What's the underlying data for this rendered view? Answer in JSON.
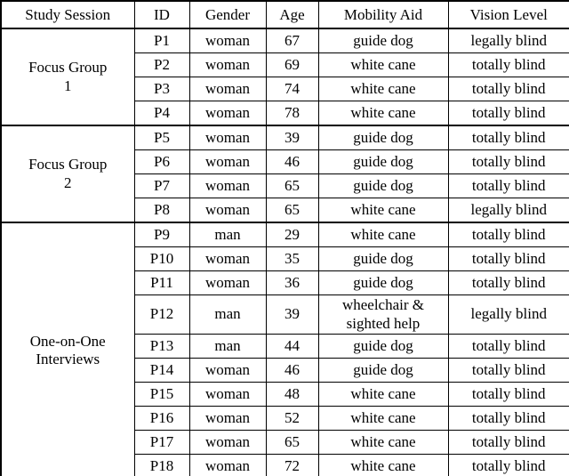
{
  "table": {
    "headers": [
      "Study Session",
      "ID",
      "Gender",
      "Age",
      "Mobility Aid",
      "Vision Level"
    ],
    "groups": [
      {
        "session": "Focus Group 1",
        "session_lines": [
          "Focus Group",
          "1"
        ],
        "rows": [
          {
            "id": "P1",
            "gender": "woman",
            "age": "67",
            "mobility_aid": "guide dog",
            "vision_level": "legally blind"
          },
          {
            "id": "P2",
            "gender": "woman",
            "age": "69",
            "mobility_aid": "white cane",
            "vision_level": "totally blind"
          },
          {
            "id": "P3",
            "gender": "woman",
            "age": "74",
            "mobility_aid": "white cane",
            "vision_level": "totally blind"
          },
          {
            "id": "P4",
            "gender": "woman",
            "age": "78",
            "mobility_aid": "white cane",
            "vision_level": "totally blind"
          }
        ]
      },
      {
        "session": "Focus Group 2",
        "session_lines": [
          "Focus Group",
          "2"
        ],
        "rows": [
          {
            "id": "P5",
            "gender": "woman",
            "age": "39",
            "mobility_aid": "guide dog",
            "vision_level": "totally blind"
          },
          {
            "id": "P6",
            "gender": "woman",
            "age": "46",
            "mobility_aid": "guide dog",
            "vision_level": "totally blind"
          },
          {
            "id": "P7",
            "gender": "woman",
            "age": "65",
            "mobility_aid": "guide dog",
            "vision_level": "totally blind"
          },
          {
            "id": "P8",
            "gender": "woman",
            "age": "65",
            "mobility_aid": "white cane",
            "vision_level": "legally blind"
          }
        ]
      },
      {
        "session": "One-on-One Interviews",
        "session_lines": [
          "One-on-One",
          "Interviews"
        ],
        "rows": [
          {
            "id": "P9",
            "gender": "man",
            "age": "29",
            "mobility_aid": "white cane",
            "vision_level": "totally blind"
          },
          {
            "id": "P10",
            "gender": "woman",
            "age": "35",
            "mobility_aid": "guide dog",
            "vision_level": "totally blind"
          },
          {
            "id": "P11",
            "gender": "woman",
            "age": "36",
            "mobility_aid": "guide dog",
            "vision_level": "totally blind"
          },
          {
            "id": "P12",
            "gender": "man",
            "age": "39",
            "mobility_aid": "wheelchair & sighted help",
            "vision_level": "legally blind"
          },
          {
            "id": "P13",
            "gender": "man",
            "age": "44",
            "mobility_aid": "guide dog",
            "vision_level": "totally blind"
          },
          {
            "id": "P14",
            "gender": "woman",
            "age": "46",
            "mobility_aid": "guide dog",
            "vision_level": "totally blind"
          },
          {
            "id": "P15",
            "gender": "woman",
            "age": "48",
            "mobility_aid": "white cane",
            "vision_level": "totally blind"
          },
          {
            "id": "P16",
            "gender": "woman",
            "age": "52",
            "mobility_aid": "white cane",
            "vision_level": "totally blind"
          },
          {
            "id": "P17",
            "gender": "woman",
            "age": "65",
            "mobility_aid": "white cane",
            "vision_level": "totally blind"
          },
          {
            "id": "P18",
            "gender": "woman",
            "age": "72",
            "mobility_aid": "white cane",
            "vision_level": "totally blind"
          }
        ]
      }
    ]
  }
}
